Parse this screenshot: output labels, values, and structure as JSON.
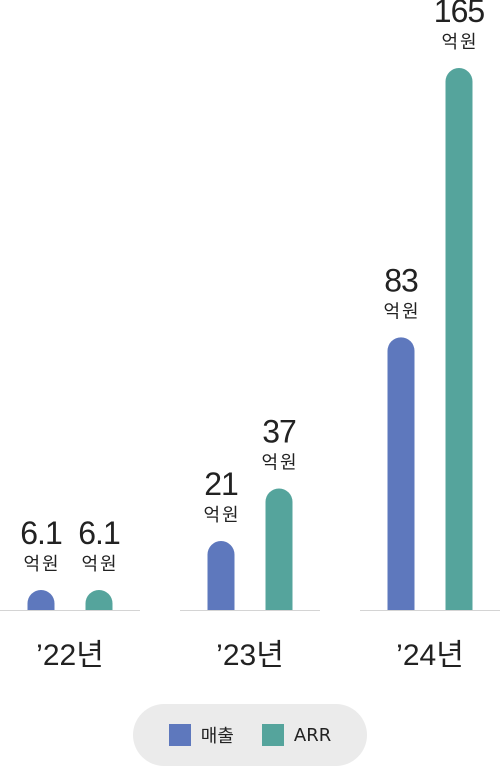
{
  "chart_data": {
    "type": "bar",
    "categories": [
      "’22년",
      "’23년",
      "’24년"
    ],
    "series": [
      {
        "name": "매출",
        "values": [
          6.1,
          21,
          83
        ],
        "color": "#5e78bd"
      },
      {
        "name": "ARR",
        "values": [
          6.1,
          37,
          165
        ],
        "color": "#55a49c"
      }
    ],
    "value_labels": [
      [
        "6.1",
        "6.1"
      ],
      [
        "21",
        "37"
      ],
      [
        "83",
        "165"
      ]
    ],
    "unit": "억원",
    "ylim": [
      0,
      165
    ],
    "grid": false,
    "legend_position": "bottom"
  }
}
